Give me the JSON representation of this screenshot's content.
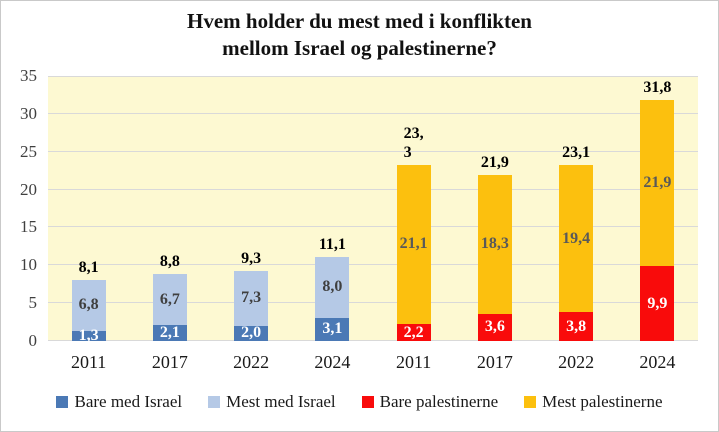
{
  "title": {
    "line1": "Hvem holder du mest med i konflikten",
    "line2": "mellom Israel og palestinerne?"
  },
  "chart_data": {
    "type": "bar",
    "stacked": true,
    "title": "Hvem holder du mest med i konflikten mellom Israel og palestinerne?",
    "categories": [
      "2011",
      "2017",
      "2022",
      "2024",
      "2011",
      "2017",
      "2022",
      "2024"
    ],
    "series": [
      {
        "name": "Bare med Israel",
        "color": "#4b79b5",
        "label_color": "#ffffff",
        "values": [
          1.3,
          2.1,
          2.0,
          3.1,
          null,
          null,
          null,
          null
        ]
      },
      {
        "name": "Mest med Israel",
        "color": "#b5c9e6",
        "label_color": "#3f3f3f",
        "values": [
          6.8,
          6.7,
          7.3,
          8.0,
          null,
          null,
          null,
          null
        ]
      },
      {
        "name": "Bare palestinerne",
        "color": "#f90b0b",
        "label_color": "#ffffff",
        "values": [
          null,
          null,
          null,
          null,
          2.2,
          3.6,
          3.8,
          9.9
        ]
      },
      {
        "name": "Mest palestinerne",
        "color": "#fcc00e",
        "label_color": "#595959",
        "values": [
          null,
          null,
          null,
          null,
          21.1,
          18.3,
          19.4,
          21.9
        ]
      }
    ],
    "totals": [
      "8,1",
      "8,8",
      "9,3",
      "11,1",
      "23,\n3",
      "21,9",
      "23,1",
      "31,8"
    ],
    "ylim": [
      0,
      35
    ],
    "yticks": [
      0,
      5,
      10,
      15,
      20,
      25,
      30,
      35
    ],
    "grid": true,
    "legend_position": "bottom",
    "plot_bg": "#fdf9d2",
    "grid_color": "#d9d9d9",
    "xlabel": "",
    "ylabel": ""
  }
}
